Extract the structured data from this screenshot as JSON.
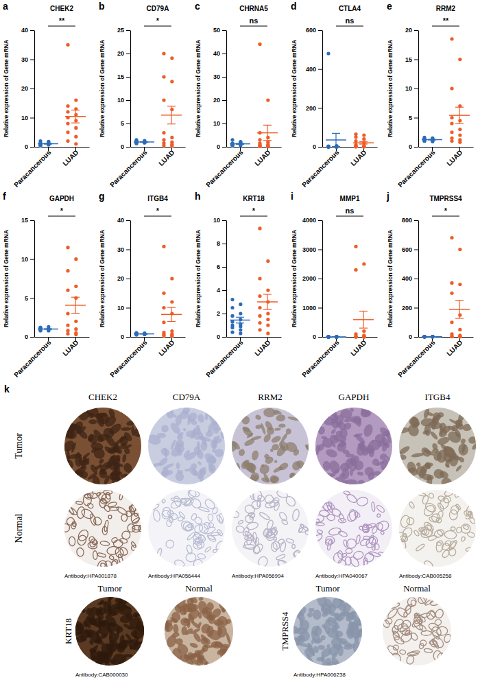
{
  "chart_data": [
    {
      "type": "strip",
      "panel": "a",
      "title": "CHEK2",
      "ylabel": "Relative expression of Gene mRNA",
      "categories": [
        "Paracancerous",
        "LUAD"
      ],
      "colors": [
        "#2b6cb8",
        "#ef5b25"
      ],
      "values": [
        [
          0.5,
          0.8,
          1.0,
          1.2,
          0.6,
          1.5,
          2.0,
          0.9,
          1.1,
          0.7,
          1.3,
          1.8,
          0.4,
          1.0
        ],
        [
          35,
          16,
          14,
          13,
          12,
          11,
          10,
          9,
          8,
          6.5,
          5,
          3.5,
          2,
          1
        ]
      ],
      "mean": [
        1.06,
        10.4
      ],
      "error": [
        0.13,
        2.2
      ],
      "annotation": "**",
      "ylim": [
        0,
        40
      ],
      "yticks": [
        0,
        10,
        20,
        30,
        40
      ]
    },
    {
      "type": "strip",
      "panel": "b",
      "title": "CD79A",
      "ylabel": "Relative expression of Gene mRNA",
      "categories": [
        "Paracancerous",
        "LUAD"
      ],
      "colors": [
        "#2b6cb8",
        "#ef5b25"
      ],
      "values": [
        [
          0.8,
          1.0,
          1.2,
          0.9,
          1.1,
          1.3,
          0.7,
          1.0,
          1.5,
          0.9,
          1.2,
          1.0,
          0.8,
          1.1
        ],
        [
          20,
          19,
          15,
          14,
          10,
          8,
          3,
          2,
          1.5,
          1,
          0.8,
          0.5,
          0.3,
          0.2
        ]
      ],
      "mean": [
        1.04,
        6.8
      ],
      "error": [
        0.06,
        1.9
      ],
      "annotation": "*",
      "ylim": [
        0,
        25
      ],
      "yticks": [
        0,
        5,
        10,
        15,
        20,
        25
      ]
    },
    {
      "type": "strip",
      "panel": "c",
      "title": "CHRNA5",
      "ylabel": "Relative expression of Gene mRNA",
      "categories": [
        "Paracancerous",
        "LUAD"
      ],
      "colors": [
        "#2b6cb8",
        "#ef5b25"
      ],
      "values": [
        [
          0.5,
          1,
          1.5,
          2,
          0.8,
          1.2,
          3,
          0.6,
          1,
          1.4,
          0.9,
          2.2,
          0.7,
          1.1
        ],
        [
          44,
          20,
          6,
          4,
          3,
          2,
          1.5,
          1,
          0.8,
          0.5,
          0.4,
          0.3,
          0.2,
          0.1
        ]
      ],
      "mean": [
        1.28,
        6.0
      ],
      "error": [
        0.2,
        3.3
      ],
      "annotation": "ns",
      "ylim": [
        0,
        50
      ],
      "yticks": [
        0,
        10,
        20,
        30,
        40,
        50
      ]
    },
    {
      "type": "strip",
      "panel": "d",
      "title": "CTLA4",
      "ylabel": "Relative expression of Gene mRNA",
      "categories": [
        "Paracancerous",
        "LUAD"
      ],
      "colors": [
        "#2b6cb8",
        "#ef5b25"
      ],
      "values": [
        [
          480,
          5,
          3,
          2,
          1,
          1,
          0.5,
          0.5,
          0.3,
          0.3,
          0.2,
          0.2,
          0.1,
          0.1
        ],
        [
          65,
          60,
          50,
          40,
          30,
          20,
          10,
          5,
          3,
          2,
          1,
          1,
          0.5,
          0.5
        ]
      ],
      "mean": [
        35.3,
        20.6
      ],
      "error": [
        34,
        6.5
      ],
      "annotation": "ns",
      "ylim": [
        0,
        600
      ],
      "yticks": [
        0,
        200,
        400,
        600
      ]
    },
    {
      "type": "strip",
      "panel": "e",
      "title": "RRM2",
      "ylabel": "Relative expression of Gene mRNA",
      "categories": [
        "Paracancerous",
        "LUAD"
      ],
      "colors": [
        "#2b6cb8",
        "#ef5b25"
      ],
      "values": [
        [
          1.0,
          1.2,
          1.4,
          1.1,
          1.3,
          1.5,
          1.0,
          1.2,
          1.6,
          1.1,
          1.3,
          0.9,
          1.2,
          1.4
        ],
        [
          18.5,
          15,
          10,
          7,
          5,
          4.5,
          4,
          3,
          2.5,
          2,
          1.5,
          1.2,
          1.0,
          0.8
        ]
      ],
      "mean": [
        1.23,
        5.4
      ],
      "error": [
        0.05,
        1.4
      ],
      "annotation": "**",
      "ylim": [
        0,
        20
      ],
      "yticks": [
        0,
        5,
        10,
        15,
        20
      ]
    },
    {
      "type": "strip",
      "panel": "f",
      "title": "GAPDH",
      "ylabel": "Relative expression of Gene mRNA",
      "categories": [
        "Paracancerous",
        "LUAD"
      ],
      "colors": [
        "#2b6cb8",
        "#ef5b25"
      ],
      "values": [
        [
          0.8,
          1.0,
          1.2,
          0.9,
          1.1,
          1.3,
          0.9,
          1.0,
          1.2,
          0.8,
          1.1,
          1.0,
          0.9,
          1.0
        ],
        [
          11.5,
          10,
          8.5,
          6.5,
          6,
          5,
          3,
          2,
          1.5,
          1,
          0.8,
          0.5,
          0.4,
          0.3
        ]
      ],
      "mean": [
        1.01,
        4.07
      ],
      "error": [
        0.04,
        1.03
      ],
      "annotation": "*",
      "ylim": [
        0,
        15
      ],
      "yticks": [
        0,
        5,
        10,
        15
      ]
    },
    {
      "type": "strip",
      "panel": "g",
      "title": "ITGB4",
      "ylabel": "Relative expression of Gene mRNA",
      "categories": [
        "Paracancerous",
        "LUAD"
      ],
      "colors": [
        "#2b6cb8",
        "#ef5b25"
      ],
      "values": [
        [
          0.8,
          1.0,
          1.2,
          0.9,
          1.1,
          1.3,
          0.7,
          1.0,
          1.4,
          0.9,
          1.2,
          1.0,
          0.8,
          1.1
        ],
        [
          31,
          20,
          15,
          12,
          10,
          8,
          5,
          2,
          1.5,
          1,
          0.8,
          0.5,
          0.4,
          0.3
        ]
      ],
      "mean": [
        1.03,
        7.7
      ],
      "error": [
        0.05,
        2.4
      ],
      "annotation": "*",
      "ylim": [
        0,
        40
      ],
      "yticks": [
        0,
        10,
        20,
        30,
        40
      ]
    },
    {
      "type": "strip",
      "panel": "h",
      "title": "KRT18",
      "ylabel": "Relative expression of Gene mRNA",
      "categories": [
        "Paracancerous",
        "LUAD"
      ],
      "colors": [
        "#2b6cb8",
        "#ef5b25"
      ],
      "values": [
        [
          3.2,
          2.8,
          2.5,
          2.0,
          1.8,
          1.5,
          1.3,
          1.1,
          1.0,
          0.9,
          0.8,
          0.6,
          0.4,
          0.3
        ],
        [
          9.3,
          6.5,
          5.0,
          4.0,
          3.5,
          3.0,
          2.5,
          2.0,
          1.8,
          1.5,
          1.2,
          1.0,
          0.6,
          0.3
        ]
      ],
      "mean": [
        1.44,
        3.0
      ],
      "error": [
        0.25,
        0.65
      ],
      "annotation": "*",
      "ylim": [
        0,
        10
      ],
      "yticks": [
        0,
        2,
        4,
        6,
        8,
        10
      ]
    },
    {
      "type": "strip",
      "panel": "i",
      "title": "MMP1",
      "ylabel": "Relative expression of Gene mRNA",
      "categories": [
        "Paracancerous",
        "LUAD"
      ],
      "colors": [
        "#2b6cb8",
        "#ef5b25"
      ],
      "values": [
        [
          0.5,
          1,
          1.5,
          2,
          0.8,
          1.2,
          1,
          0.6,
          1,
          1.4,
          0.9,
          2,
          0.7,
          1.1
        ],
        [
          3100,
          2500,
          2300,
          200,
          100,
          50,
          20,
          10,
          5,
          3,
          2,
          1,
          1,
          0.5
        ]
      ],
      "mean": [
        1.12,
        592
      ],
      "error": [
        0.12,
        290
      ],
      "annotation": "ns",
      "ylim": [
        0,
        4000
      ],
      "yticks": [
        0,
        1000,
        2000,
        3000,
        4000
      ]
    },
    {
      "type": "strip",
      "panel": "j",
      "title": "TMPRSS4",
      "ylabel": "Relative expression of Gene mRNA",
      "categories": [
        "Paracancerous",
        "LUAD"
      ],
      "colors": [
        "#2b6cb8",
        "#ef5b25"
      ],
      "values": [
        [
          0.5,
          1,
          1.5,
          2,
          0.8,
          1.2,
          1,
          0.6,
          1,
          1.4,
          0.9,
          2,
          0.7,
          1.1
        ],
        [
          680,
          600,
          370,
          360,
          300,
          150,
          100,
          50,
          20,
          10,
          5,
          3,
          2,
          1
        ]
      ],
      "mean": [
        1.12,
        189
      ],
      "error": [
        0.12,
        62
      ],
      "annotation": "*",
      "ylim": [
        0,
        800
      ],
      "yticks": [
        0,
        200,
        400,
        600,
        800
      ]
    }
  ],
  "ihc": {
    "label": "k",
    "row_labels": [
      "Tumor",
      "Normal"
    ],
    "top_genes": [
      "CHEK2",
      "CD79A",
      "RRM2",
      "GAPDH",
      "ITGB4"
    ],
    "top_antibodies": [
      "Antibody:HPA001878",
      "Antibody:HPA056444",
      "Antibody:HPA056994",
      "Antibody:HPA040067",
      "Antibody:CAB005258"
    ],
    "bottom": [
      {
        "gene": "KRT18",
        "antibody": "Antibody:CAB000030"
      },
      {
        "gene": "TMPRSS4",
        "antibody": "Antibody:HPA006238"
      }
    ]
  }
}
